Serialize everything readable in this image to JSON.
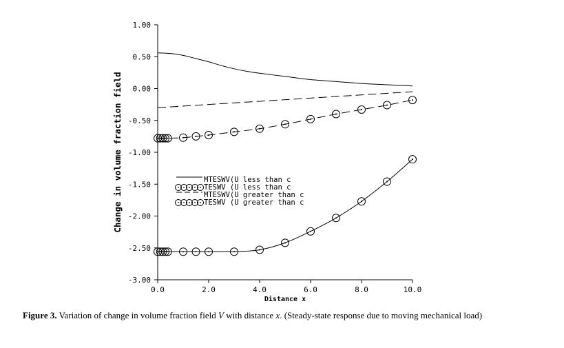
{
  "chart_data": {
    "type": "line",
    "xlabel": "Distance x",
    "ylabel": "Change in volume fraction field",
    "xlim": [
      0,
      10
    ],
    "ylim": [
      -3,
      1
    ],
    "x_ticks": [
      0,
      2,
      4,
      6,
      8,
      10
    ],
    "x_tick_labels": [
      "0.0",
      "2.0",
      "4.0",
      "6.0",
      "8.0",
      "10.0"
    ],
    "y_ticks": [
      1,
      0.5,
      0,
      -0.5,
      -1,
      -1.5,
      -2,
      -2.5,
      -3
    ],
    "y_tick_labels": [
      "1.00",
      "0.50",
      "0.00",
      "-0.50",
      "-1.00",
      "-1.50",
      "-2.00",
      "-2.50",
      "-3.00"
    ],
    "grid": false,
    "legend_position": "center-left",
    "series": [
      {
        "name": "MTESWV(U less than c",
        "style": "solid",
        "x": [
          0,
          0.5,
          1,
          1.5,
          2,
          2.5,
          3,
          3.5,
          4,
          5,
          6,
          7,
          8,
          9,
          10
        ],
        "y": [
          0.56,
          0.55,
          0.52,
          0.47,
          0.42,
          0.36,
          0.31,
          0.27,
          0.24,
          0.19,
          0.14,
          0.11,
          0.08,
          0.06,
          0.04
        ]
      },
      {
        "name": "TESWV (U less than c",
        "style": "circles-solid",
        "x": [
          0,
          0.1,
          0.2,
          0.3,
          0.4,
          1,
          1.5,
          2,
          3,
          4,
          5,
          6,
          7,
          8,
          9,
          10
        ],
        "y": [
          -2.56,
          -2.56,
          -2.56,
          -2.56,
          -2.56,
          -2.56,
          -2.56,
          -2.56,
          -2.56,
          -2.53,
          -2.42,
          -2.24,
          -2.03,
          -1.77,
          -1.46,
          -1.11
        ]
      },
      {
        "name": "MTESWV(U greater than c",
        "style": "dashed",
        "x": [
          0,
          10
        ],
        "y": [
          -0.3,
          -0.05
        ]
      },
      {
        "name": "TESWV (U greater than c",
        "style": "circles-dashed",
        "x": [
          0,
          0.1,
          0.2,
          0.3,
          0.4,
          1,
          1.5,
          2,
          3,
          4,
          5,
          6,
          7,
          8,
          9,
          10
        ],
        "y": [
          -0.78,
          -0.78,
          -0.78,
          -0.78,
          -0.78,
          -0.77,
          -0.75,
          -0.73,
          -0.68,
          -0.63,
          -0.56,
          -0.48,
          -0.4,
          -0.33,
          -0.26,
          -0.18
        ]
      }
    ]
  },
  "caption": {
    "label": "Figure 3.",
    "text_1": " Variation of change in volume fraction field ",
    "var_1": "V",
    "text_2": " with distance ",
    "var_2": "x",
    "text_3": ". (Steady-state response due to moving mechanical load)"
  },
  "colors": {
    "ink": "#000000",
    "background": "#ffffff"
  }
}
